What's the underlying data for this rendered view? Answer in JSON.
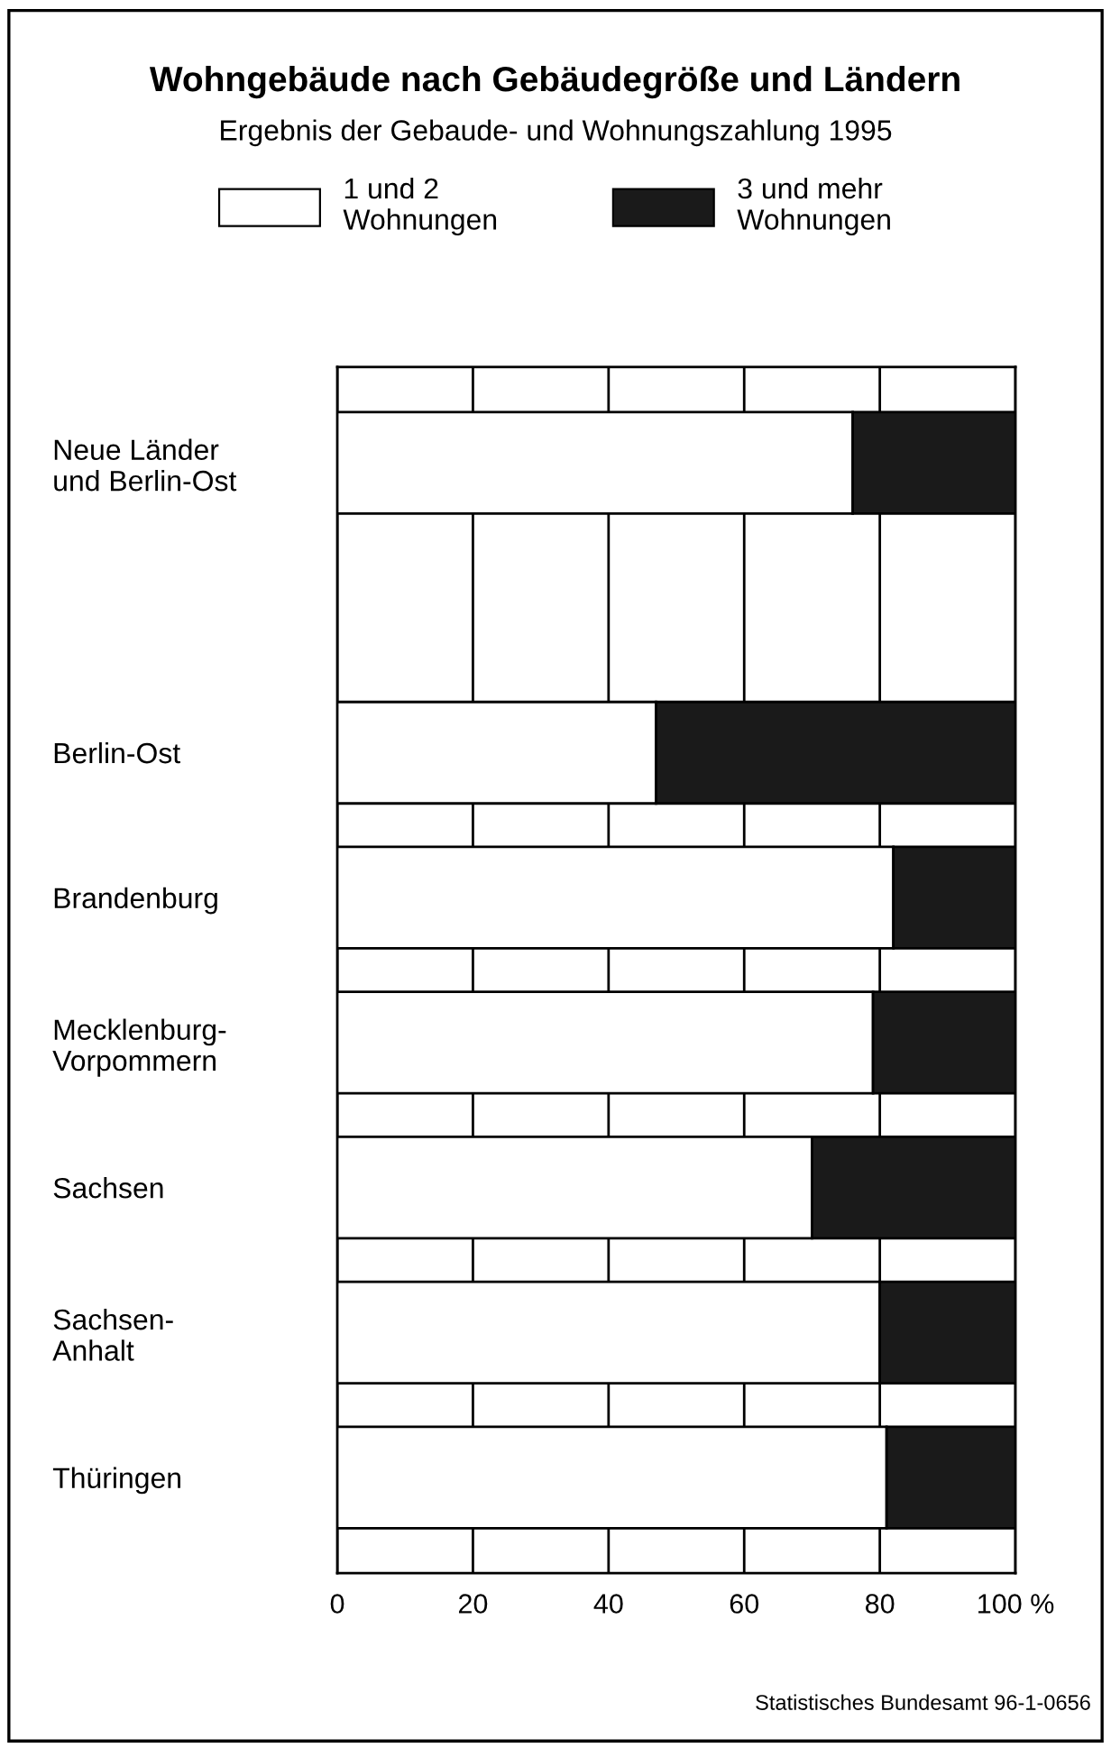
{
  "chart_data": {
    "type": "bar",
    "orientation": "horizontal",
    "stacked": true,
    "title": "Wohngebäude nach Gebäudegröße und Ländern",
    "subtitle": "Ergebnis der Gebaude- und Wohnungszahlung 1995",
    "categories": [
      "Neue Länder\nund Berlin-Ost",
      null,
      "Berlin-Ost",
      "Brandenburg",
      "Mecklenburg-\nVorpommern",
      "Sachsen",
      "Sachsen-\nAnhalt",
      "Thüringen"
    ],
    "series": [
      {
        "name": "1 und 2\nWohnungen",
        "color": "#ffffff",
        "values": [
          76,
          null,
          47,
          82,
          79,
          70,
          80,
          81
        ]
      },
      {
        "name": "3 und mehr\nWohnungen",
        "color": "#1a1a1a",
        "values": [
          24,
          null,
          53,
          18,
          21,
          30,
          20,
          19
        ]
      }
    ],
    "xlim": [
      0,
      100
    ],
    "xticks": [
      0,
      20,
      40,
      60,
      80,
      {
        "value": 100,
        "label": "100 %"
      }
    ],
    "grid": "x",
    "legend": "top",
    "annotations": [
      "Statistisches Bundesamt 96-1-0656"
    ]
  }
}
